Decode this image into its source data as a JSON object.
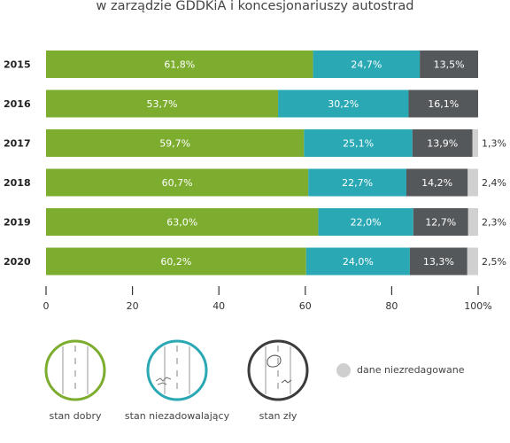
{
  "title": "w zarządzie GDDKiA i koncesjonariuszy autostrad",
  "chart_data": {
    "type": "bar",
    "orientation": "horizontal",
    "stacked": true,
    "categories": [
      "2015",
      "2016",
      "2017",
      "2018",
      "2019",
      "2020"
    ],
    "series": [
      {
        "name": "stan dobry",
        "color": "#7dad2f",
        "values": [
          61.8,
          53.7,
          59.7,
          60.7,
          63.0,
          60.2
        ],
        "labels": [
          "61,8%",
          "53,7%",
          "59,7%",
          "60,7%",
          "63,0%",
          "60,2%"
        ]
      },
      {
        "name": "stan niezadowalający",
        "color": "#2aa9b4",
        "values": [
          24.7,
          30.2,
          25.1,
          22.7,
          22.0,
          24.0
        ],
        "labels": [
          "24,7%",
          "30,2%",
          "25,1%",
          "22,7%",
          "22,0%",
          "24,0%"
        ]
      },
      {
        "name": "stan zły",
        "color": "#55585b",
        "values": [
          13.5,
          16.1,
          13.9,
          14.2,
          12.7,
          13.3
        ],
        "labels": [
          "13,5%",
          "16,1%",
          "13,9%",
          "14,2%",
          "12,7%",
          "13,3%"
        ]
      },
      {
        "name": "dane niezredagowane",
        "color": "#d0d0d0",
        "values": [
          0,
          0,
          1.3,
          2.4,
          2.3,
          2.5
        ],
        "labels": [
          "",
          "",
          "1,3%",
          "2,4%",
          "2,3%",
          "2,5%"
        ]
      }
    ],
    "xlim": [
      0,
      100
    ],
    "xticks": [
      "0",
      "20",
      "40",
      "60",
      "80",
      "100%"
    ],
    "legend_position": "bottom"
  },
  "legend": [
    {
      "label": "stan dobry",
      "icon": "road-good-icon",
      "color": "#7dad2f"
    },
    {
      "label": "stan niezadowalający",
      "icon": "road-unsatisfactory-icon",
      "color": "#2aa9b4"
    },
    {
      "label": "stan zły",
      "icon": "road-bad-icon",
      "color": "#3a3c3e"
    },
    {
      "label": "dane niezredagowane",
      "icon": "grey-dot-icon",
      "color": "#cfcfcf"
    }
  ]
}
